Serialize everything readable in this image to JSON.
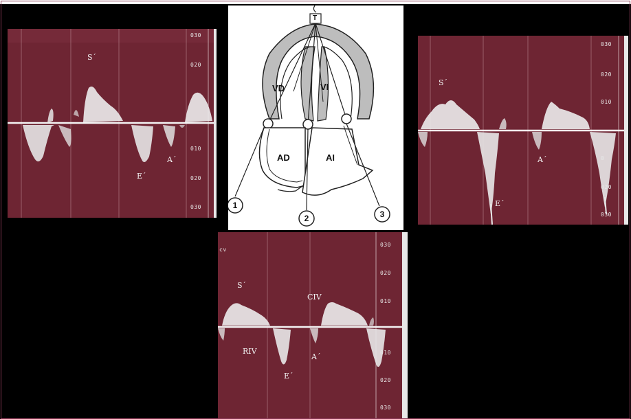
{
  "left_panel": {
    "labels": {
      "s": "S´",
      "e": "E´",
      "a": "A´"
    },
    "ticks": [
      "030",
      "020",
      "010",
      "020",
      "030"
    ]
  },
  "right_panel": {
    "labels": {
      "s": "S´",
      "e": "E´",
      "a": "A´"
    },
    "ticks": [
      "030",
      "020",
      "010",
      "0",
      "020",
      "030"
    ]
  },
  "bottom_panel": {
    "corner": "cv",
    "labels": {
      "s": "S´",
      "civ": "CIV",
      "riv": "RIV",
      "e": "E´",
      "a": "A´"
    },
    "ticks": [
      "030",
      "020",
      "010",
      "010",
      "020",
      "030"
    ]
  },
  "diagram": {
    "probe": "T",
    "chambers": {
      "vd": "VD",
      "vi": "VI",
      "ad": "AD",
      "ai": "AI"
    },
    "markers": [
      "1",
      "2",
      "3"
    ]
  }
}
